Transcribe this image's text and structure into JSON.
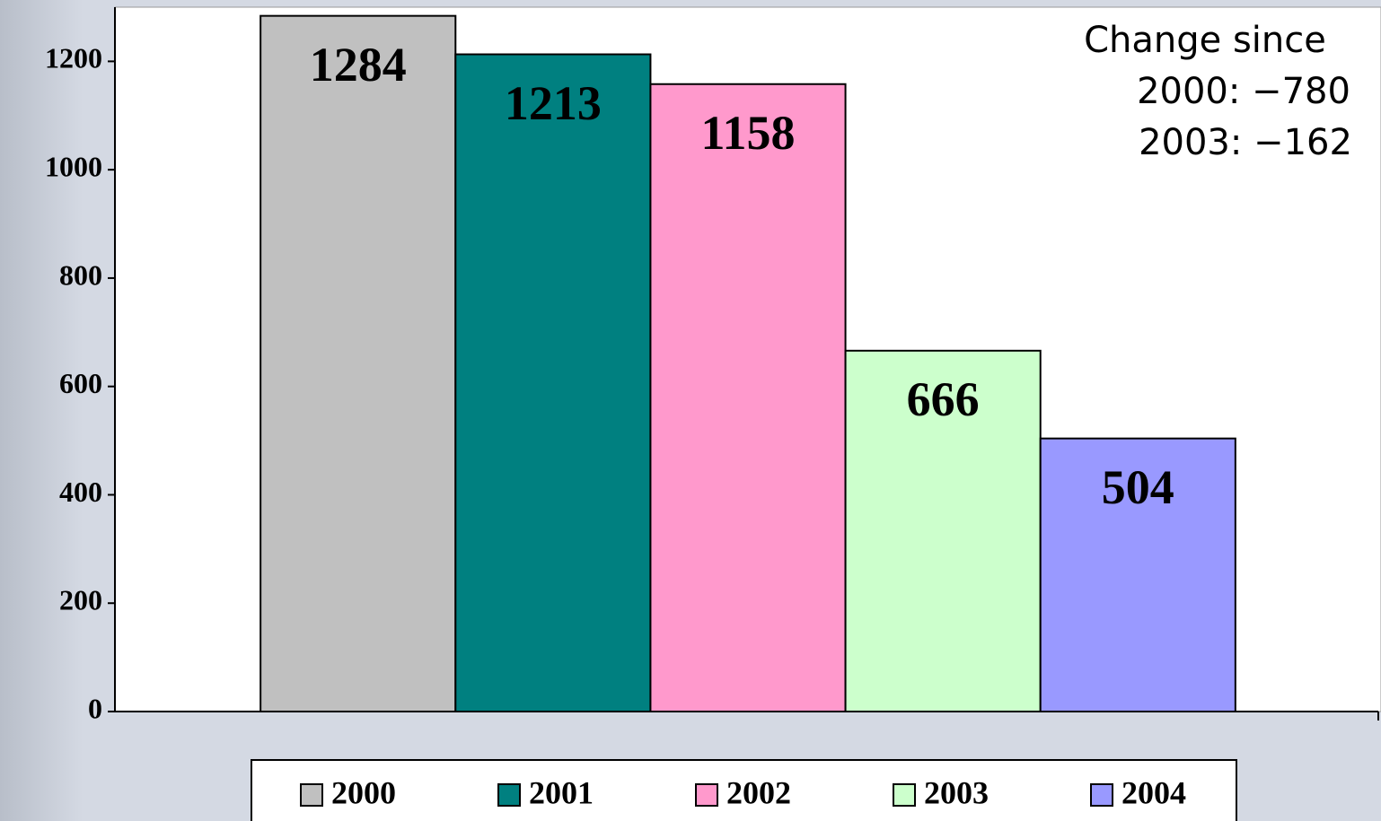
{
  "chart_data": {
    "type": "bar",
    "categories": [
      null
    ],
    "series": [
      {
        "name": "2000",
        "color": "#c0c0c0",
        "values": [
          1284
        ]
      },
      {
        "name": "2001",
        "color": "#008080",
        "values": [
          1213
        ]
      },
      {
        "name": "2002",
        "color": "#ff99cc",
        "values": [
          1158
        ]
      },
      {
        "name": "2003",
        "color": "#ccffcc",
        "values": [
          666
        ]
      },
      {
        "name": "2004",
        "color": "#9999ff",
        "values": [
          504
        ]
      }
    ],
    "ylim": [
      0,
      1300
    ],
    "yticks": [
      0,
      200,
      400,
      600,
      800,
      1000,
      1200
    ],
    "legend": "bottom",
    "annotation": [
      "Change since",
      "2000: −780",
      "2003: −162"
    ]
  }
}
